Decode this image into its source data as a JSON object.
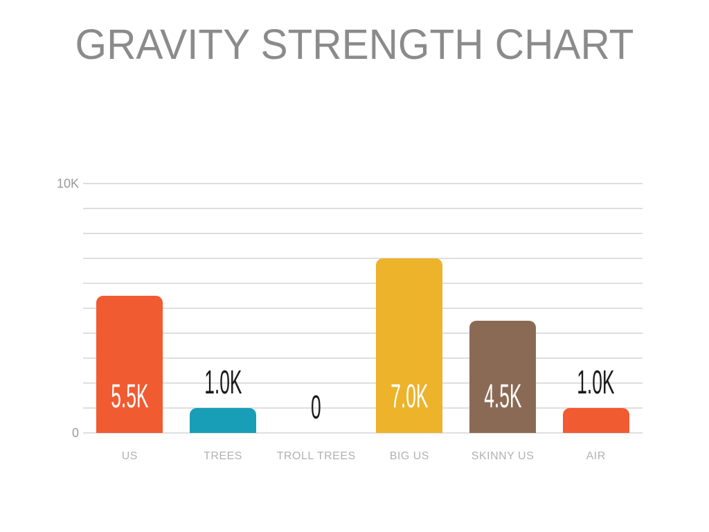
{
  "chart_data": {
    "type": "bar",
    "title": "GRAVITY STRENGTH CHART",
    "categories": [
      "US",
      "TREES",
      "TROLL TREES",
      "BIG US",
      "SKINNY US",
      "AIR"
    ],
    "values": [
      5500,
      1000,
      0,
      7000,
      4500,
      1000
    ],
    "value_labels": [
      "5.5K",
      "1.0K",
      "0",
      "7.0K",
      "4.5K",
      "1.0K"
    ],
    "bar_colors": [
      "#F15B32",
      "#189EB7",
      "none",
      "#ECB32B",
      "#8B6A55",
      "#F15B32"
    ],
    "label_placement": [
      "inside",
      "above",
      "above",
      "inside",
      "inside",
      "above"
    ],
    "xlabel": "",
    "ylabel": "",
    "ylim": [
      0,
      10000
    ],
    "ytick_step": 1000,
    "ytick_labels_shown": [
      "0",
      "10K"
    ],
    "grid": true,
    "gridline_count": 11,
    "legend": false
  },
  "colors": {
    "background": "#FFFFFF",
    "title_text": "#8B8B8B",
    "axis_text": "#9A9A9A",
    "category_text": "#B1B1B1",
    "gridline": "#DEDEDE",
    "value_label_inside": "#FFFFFF",
    "value_label_above": "#1A1A1A"
  }
}
